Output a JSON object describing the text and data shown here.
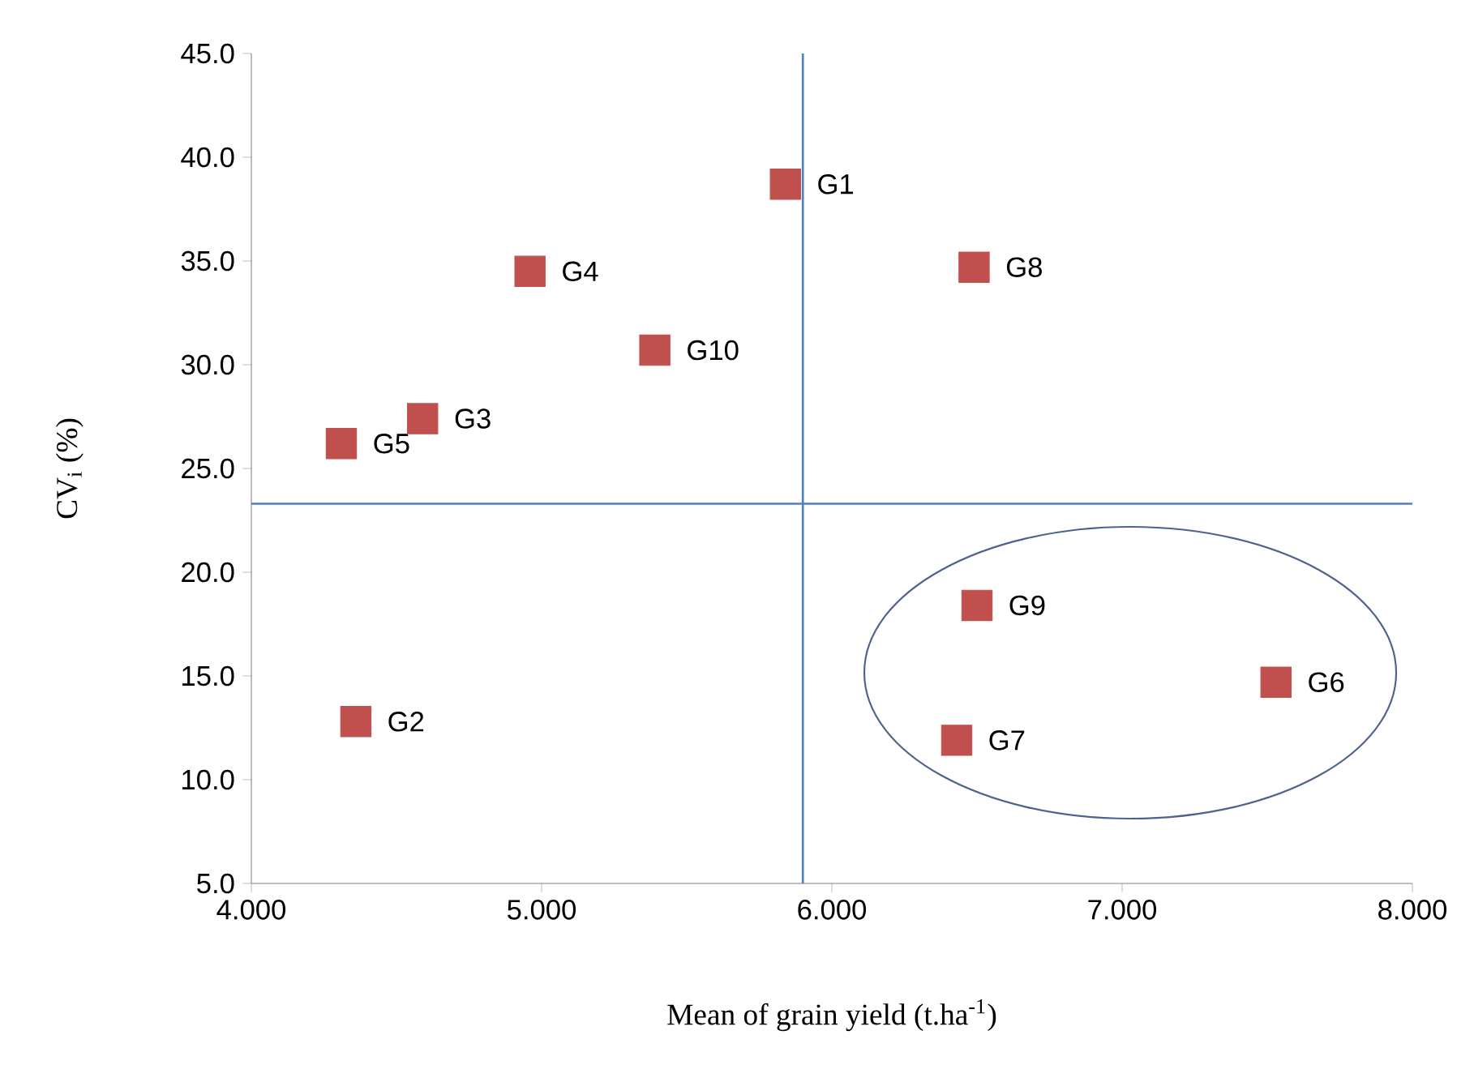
{
  "chart_data": {
    "type": "scatter",
    "xlabel": "Mean of grain yield (t.ha$^{-1}$)",
    "ylabel": "CV$_{i}$ (%)",
    "xlim": [
      4,
      8
    ],
    "ylim": [
      5,
      45
    ],
    "xticks": [
      {
        "value": 4,
        "label": "4.000"
      },
      {
        "value": 5,
        "label": "5.000"
      },
      {
        "value": 6,
        "label": "6.000"
      },
      {
        "value": 7,
        "label": "7.000"
      },
      {
        "value": 8,
        "label": "8.000"
      }
    ],
    "yticks": [
      {
        "value": 5,
        "label": "5.0"
      },
      {
        "value": 10,
        "label": "10.0"
      },
      {
        "value": 15,
        "label": "15.0"
      },
      {
        "value": 20,
        "label": "20.0"
      },
      {
        "value": 25,
        "label": "25.0"
      },
      {
        "value": 30,
        "label": "30.0"
      },
      {
        "value": 35,
        "label": "35.0"
      },
      {
        "value": 40,
        "label": "40.0"
      },
      {
        "value": 45,
        "label": "45.0"
      }
    ],
    "series": [
      {
        "color": "#c0504d",
        "x": [
          5.84,
          4.36,
          4.59,
          4.96,
          4.31,
          7.53,
          6.43,
          6.49,
          6.5,
          5.39
        ],
        "values": [
          38.7,
          12.8,
          27.4,
          34.5,
          26.2,
          14.7,
          11.9,
          34.7,
          18.4,
          30.7
        ]
      }
    ],
    "marker": "square",
    "grid": false,
    "ref_lines": [
      {
        "axis": "x",
        "value": 5.9,
        "color": "#4f81bd"
      },
      {
        "axis": "y",
        "value": 23.3,
        "color": "#4f81bd"
      }
    ],
    "annotations": [
      {
        "text": "G1",
        "x": 5.84,
        "y": 38.7
      },
      {
        "text": "G2",
        "x": 4.36,
        "y": 12.8
      },
      {
        "text": "G3",
        "x": 4.59,
        "y": 27.4
      },
      {
        "text": "G4",
        "x": 4.96,
        "y": 34.5
      },
      {
        "text": "G5",
        "x": 4.31,
        "y": 26.2
      },
      {
        "text": "G6",
        "x": 7.53,
        "y": 14.7
      },
      {
        "text": "G7",
        "x": 6.43,
        "y": 11.9
      },
      {
        "text": "G8",
        "x": 6.49,
        "y": 34.7
      },
      {
        "text": "G9",
        "x": 6.5,
        "y": 18.4
      },
      {
        "text": "G10",
        "x": 5.39,
        "y": 30.7
      }
    ]
  }
}
